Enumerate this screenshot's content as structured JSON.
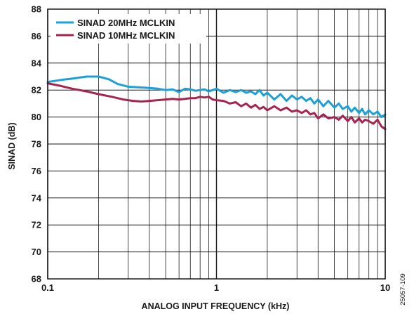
{
  "figure_id": "25057-109",
  "chart_data": {
    "type": "line",
    "xlabel": "ANALOG INPUT FREQUENCY (kHz)",
    "ylabel": "SINAD (dB)",
    "x_scale": "log",
    "xlim": [
      0.1,
      10
    ],
    "ylim": [
      68,
      88
    ],
    "xticks": [
      0.1,
      1,
      10
    ],
    "xtick_labels": [
      "0.1",
      "1",
      "10"
    ],
    "yticks": [
      68,
      70,
      72,
      74,
      76,
      78,
      80,
      82,
      84,
      86,
      88
    ],
    "ytick_labels": [
      "68",
      "70",
      "72",
      "74",
      "76",
      "78",
      "80",
      "82",
      "84",
      "86",
      "88"
    ],
    "grid": true,
    "legend_position": "top-left",
    "series": [
      {
        "name": "SINAD 20MHz MCLKIN",
        "color": "#1ba0d7",
        "x": [
          0.1,
          0.12,
          0.14,
          0.17,
          0.2,
          0.23,
          0.26,
          0.3,
          0.35,
          0.4,
          0.45,
          0.5,
          0.55,
          0.6,
          0.65,
          0.7,
          0.75,
          0.8,
          0.85,
          0.9,
          0.95,
          1.0,
          1.1,
          1.2,
          1.3,
          1.4,
          1.5,
          1.6,
          1.7,
          1.8,
          1.9,
          2.0,
          2.2,
          2.4,
          2.6,
          2.8,
          3.0,
          3.2,
          3.4,
          3.6,
          3.8,
          4.0,
          4.3,
          4.6,
          5.0,
          5.3,
          5.6,
          6.0,
          6.3,
          6.6,
          7.0,
          7.3,
          7.6,
          8.0,
          8.5,
          9.0,
          9.5,
          10
        ],
        "y": [
          82.6,
          82.75,
          82.85,
          83.0,
          83.0,
          82.8,
          82.45,
          82.25,
          82.2,
          82.15,
          82.1,
          82.0,
          82.05,
          81.85,
          82.1,
          82.05,
          81.95,
          82.0,
          82.05,
          81.9,
          82.0,
          82.1,
          81.8,
          82.0,
          81.85,
          82.0,
          81.8,
          81.9,
          81.7,
          82.0,
          81.6,
          81.8,
          81.3,
          81.7,
          81.2,
          81.6,
          81.3,
          81.5,
          81.2,
          81.4,
          81.0,
          81.3,
          80.8,
          81.2,
          80.7,
          81.0,
          80.6,
          80.8,
          80.4,
          80.7,
          80.3,
          80.6,
          80.2,
          80.5,
          80.2,
          80.4,
          80.0,
          80.2
        ]
      },
      {
        "name": "SINAD 10MHz MCLKIN",
        "color": "#a6244d",
        "x": [
          0.1,
          0.12,
          0.14,
          0.17,
          0.2,
          0.24,
          0.28,
          0.32,
          0.36,
          0.4,
          0.45,
          0.5,
          0.55,
          0.6,
          0.65,
          0.7,
          0.75,
          0.8,
          0.85,
          0.9,
          0.95,
          1.0,
          1.1,
          1.2,
          1.3,
          1.4,
          1.5,
          1.6,
          1.7,
          1.8,
          1.9,
          2.0,
          2.2,
          2.4,
          2.6,
          2.8,
          3.0,
          3.2,
          3.4,
          3.6,
          3.8,
          4.0,
          4.3,
          4.6,
          5.0,
          5.3,
          5.6,
          6.0,
          6.3,
          6.6,
          7.0,
          7.3,
          7.6,
          8.0,
          8.5,
          9.0,
          9.5,
          10
        ],
        "y": [
          82.5,
          82.3,
          82.1,
          81.9,
          81.7,
          81.5,
          81.3,
          81.2,
          81.15,
          81.2,
          81.25,
          81.3,
          81.35,
          81.3,
          81.35,
          81.4,
          81.4,
          81.5,
          81.45,
          81.5,
          81.3,
          81.25,
          81.2,
          81.0,
          81.1,
          80.8,
          81.0,
          80.7,
          80.9,
          80.6,
          80.75,
          80.5,
          80.8,
          80.5,
          80.7,
          80.4,
          80.5,
          80.3,
          80.5,
          80.2,
          80.3,
          79.9,
          80.2,
          79.9,
          80.0,
          79.8,
          80.1,
          79.7,
          80.0,
          79.6,
          79.9,
          79.6,
          79.8,
          79.7,
          79.5,
          79.8,
          79.3,
          79.1
        ]
      }
    ]
  }
}
